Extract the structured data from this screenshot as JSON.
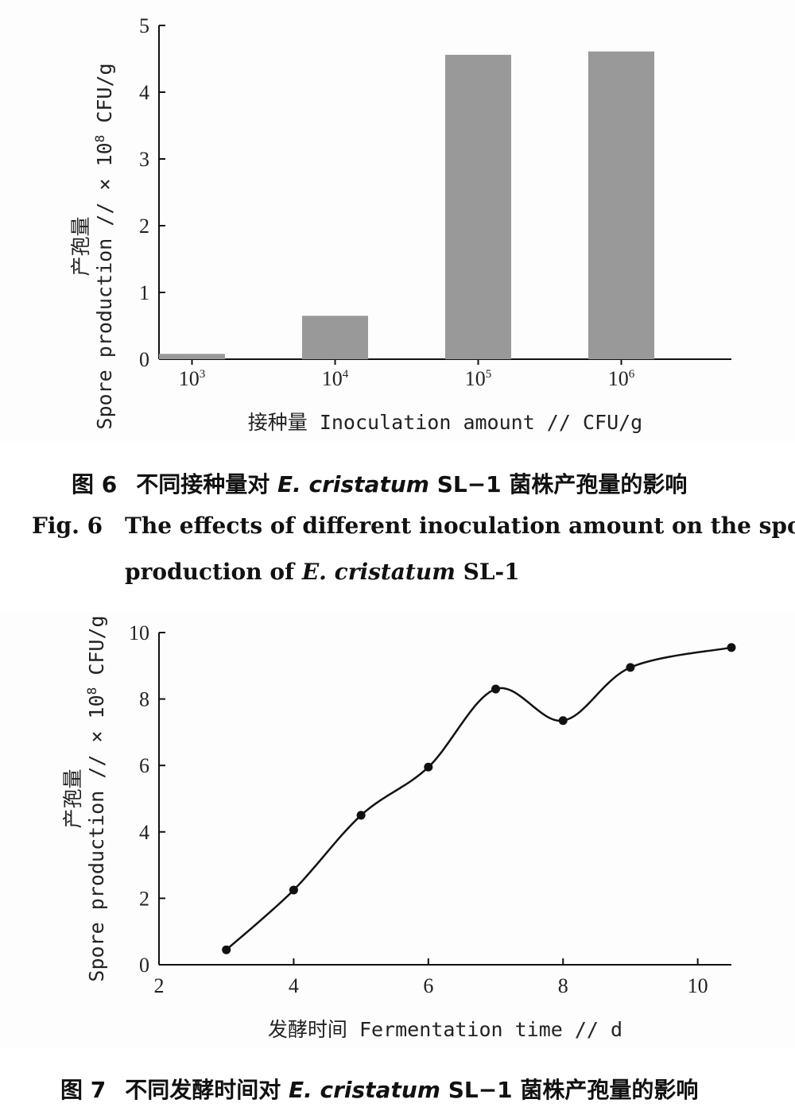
{
  "figure6": {
    "caption_cn": {
      "label": "图 6",
      "before": "不同接种量对 ",
      "species": "E. cristatum",
      "after": " SL−1 菌株产孢量的影响"
    },
    "caption_en": {
      "label": "Fig. 6",
      "line1": "The effects of different inoculation amount on the spore",
      "line2_before": "production of ",
      "species": "E. cristatum",
      "line2_after": " SL-1"
    }
  },
  "figure7": {
    "caption_cn": {
      "label": "图 7",
      "before": "不同发酵时间对 ",
      "species": "E. cristatum",
      "after": " SL−1 菌株产孢量的影响"
    }
  },
  "chart_data": [
    {
      "type": "bar",
      "categories": [
        "10^3",
        "10^4",
        "10^5",
        "10^6"
      ],
      "category_labels": [
        {
          "base": "10",
          "exp": "3"
        },
        {
          "base": "10",
          "exp": "4"
        },
        {
          "base": "10",
          "exp": "5"
        },
        {
          "base": "10",
          "exp": "6"
        }
      ],
      "values": [
        0.08,
        0.65,
        4.56,
        4.61
      ],
      "ylabel_cn": "产孢量",
      "ylabel_en": "Spore production // × 10",
      "ylabel_exp": "8",
      "ylabel_unit": " CFU/g",
      "xlabel": "接种量 Inoculation amount // CFU/g",
      "ylim": [
        0,
        5
      ],
      "yticks": [
        0,
        1,
        2,
        3,
        4,
        5
      ],
      "bar_color": "#999999",
      "grid": false
    },
    {
      "type": "line",
      "x": [
        3,
        4,
        5,
        6,
        7,
        8,
        9,
        10.5
      ],
      "y": [
        0.45,
        2.25,
        4.5,
        5.95,
        8.3,
        7.35,
        8.95,
        9.55
      ],
      "ylabel_cn": "产孢量",
      "ylabel_en": "Spore production // × 10",
      "ylabel_exp": "8",
      "ylabel_unit": " CFU/g",
      "xlabel": "发酵时间 Fermentation time // d",
      "xlim": [
        2,
        10.5
      ],
      "ylim": [
        0,
        10
      ],
      "xticks": [
        2,
        4,
        6,
        8,
        10
      ],
      "yticks": [
        0,
        2,
        4,
        6,
        8,
        10
      ],
      "line_color": "#111111",
      "marker": "filled-circle",
      "grid": false
    }
  ]
}
